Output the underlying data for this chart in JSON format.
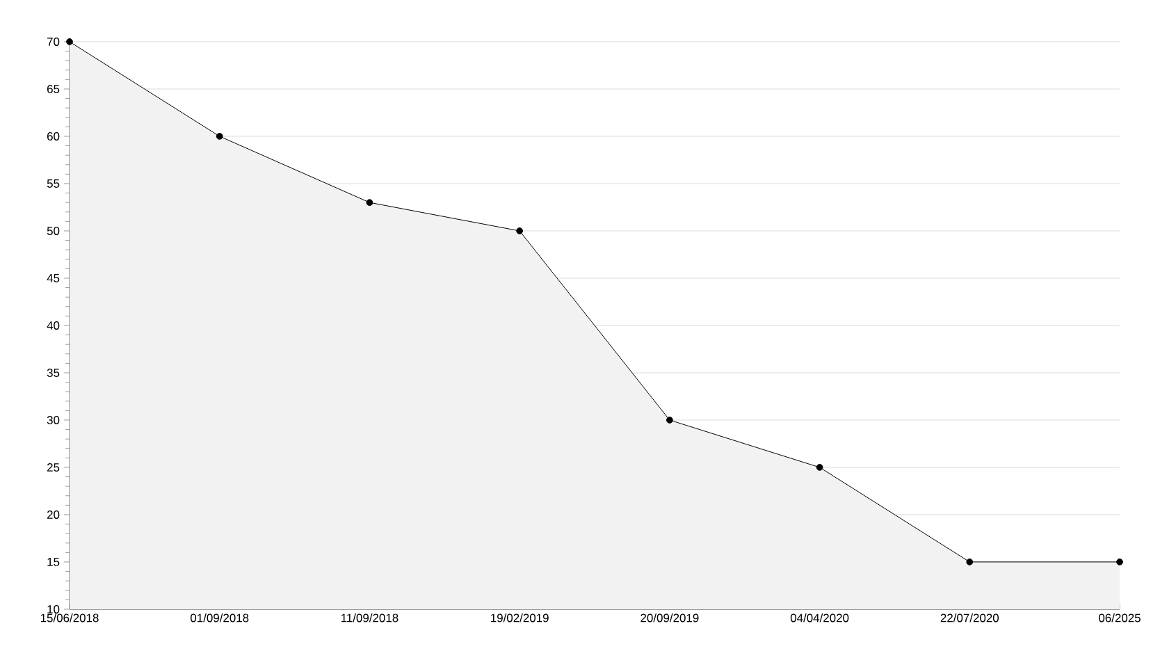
{
  "chart_data": {
    "type": "area",
    "categories": [
      "15/06/2018",
      "01/09/2018",
      "11/09/2018",
      "19/02/2019",
      "20/09/2019",
      "04/04/2020",
      "22/07/2020",
      "06/2025"
    ],
    "series": [
      {
        "color": "#000000",
        "values": [
          70,
          60,
          53,
          50,
          30,
          25,
          15,
          15
        ]
      }
    ],
    "ylim": [
      10,
      70
    ],
    "yticks": [
      10,
      15,
      20,
      25,
      30,
      35,
      40,
      45,
      50,
      55,
      60,
      65,
      70
    ],
    "grid": "y",
    "marker": "circle",
    "line_style": "solid"
  }
}
